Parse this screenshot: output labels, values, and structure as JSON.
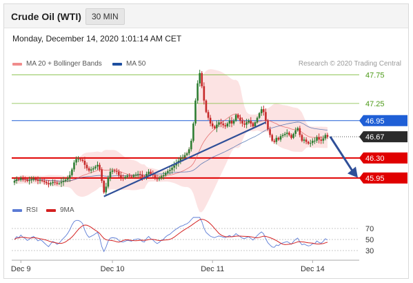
{
  "header": {
    "title": "Crude Oil (WTI)",
    "timeframe": "30 MIN"
  },
  "datetime": "Monday, December 14, 2020 1:01:14 AM CET",
  "legend": {
    "ma_bb": "MA 20 + Bollinger Bands",
    "ma50": "MA 50",
    "credit": "Research © 2020 Trading Central",
    "rsi": "RSI",
    "rsi_ma": "9MA"
  },
  "colors": {
    "bb": "#f4a6a6",
    "ma20": "#e05555",
    "ma50": "#1e4fa0",
    "up": "#2e7d32",
    "down": "#c62828",
    "support": "#e00000",
    "resistance_green": "#7cbb3a",
    "blue_level": "#1f5fd6",
    "rsi": "#5b7bd5",
    "rsi_ma": "#d42020",
    "trend": "#2f4f98"
  },
  "chart_data": {
    "type": "candlestick",
    "instrument": "Crude Oil (WTI)",
    "interval": "30 MIN",
    "ylim": [
      45.6,
      47.85
    ],
    "x_ticks": [
      "Dec 9",
      "Dec 10",
      "Dec 11",
      "Dec 14"
    ],
    "price_levels": [
      {
        "value": 47.75,
        "label": "47.75",
        "style": "green-line"
      },
      {
        "value": 47.25,
        "label": "47.25",
        "style": "green-line"
      },
      {
        "value": 46.95,
        "label": "46.95",
        "style": "blue-badge"
      },
      {
        "value": 46.67,
        "label": "46.67",
        "style": "last-price"
      },
      {
        "value": 46.3,
        "label": "46.30",
        "style": "red-badge"
      },
      {
        "value": 45.95,
        "label": "45.95",
        "style": "red-badge"
      }
    ],
    "close": [
      45.9,
      45.93,
      45.92,
      45.95,
      45.93,
      45.92,
      45.9,
      45.91,
      45.93,
      45.94,
      45.92,
      45.9,
      45.91,
      45.9,
      45.88,
      45.86,
      45.84,
      45.86,
      45.88,
      45.87,
      45.85,
      45.86,
      45.88,
      45.9,
      45.92,
      45.95,
      46.0,
      46.1,
      46.22,
      46.28,
      46.28,
      46.27,
      46.25,
      46.18,
      46.12,
      46.08,
      46.1,
      46.12,
      46.15,
      46.18,
      46.1,
      45.9,
      45.7,
      45.8,
      45.96,
      46.06,
      46.08,
      46.07,
      46.06,
      46.0,
      45.96,
      45.95,
      45.97,
      45.99,
      45.98,
      45.97,
      46.0,
      46.01,
      46.02,
      46.01,
      45.97,
      45.96,
      46.02,
      46.06,
      46.02,
      46.0,
      45.96,
      45.93,
      45.95,
      45.98,
      46.0,
      46.04,
      46.07,
      46.09,
      46.13,
      46.17,
      46.21,
      46.25,
      46.29,
      46.31,
      46.35,
      46.38,
      46.45,
      46.6,
      46.9,
      47.3,
      47.6,
      47.78,
      47.55,
      47.3,
      47.1,
      47.0,
      46.9,
      46.85,
      46.82,
      46.88,
      46.92,
      46.9,
      46.87,
      46.85,
      46.9,
      46.95,
      46.9,
      46.95,
      47.05,
      47.0,
      46.95,
      46.9,
      46.88,
      46.92,
      46.95,
      46.9,
      46.85,
      46.92,
      47.0,
      47.08,
      47.15,
      47.1,
      46.95,
      46.8,
      46.7,
      46.6,
      46.58,
      46.65,
      46.62,
      46.68,
      46.7,
      46.72,
      46.74,
      46.7,
      46.65,
      46.72,
      46.78,
      46.82,
      46.7,
      46.6,
      46.62,
      46.58,
      46.55,
      46.56,
      46.6,
      46.6,
      46.66,
      46.62,
      46.6,
      46.64,
      46.7,
      46.67
    ],
    "rsi": {
      "levels": [
        70,
        50,
        30
      ],
      "ylim": [
        15,
        90
      ]
    }
  }
}
